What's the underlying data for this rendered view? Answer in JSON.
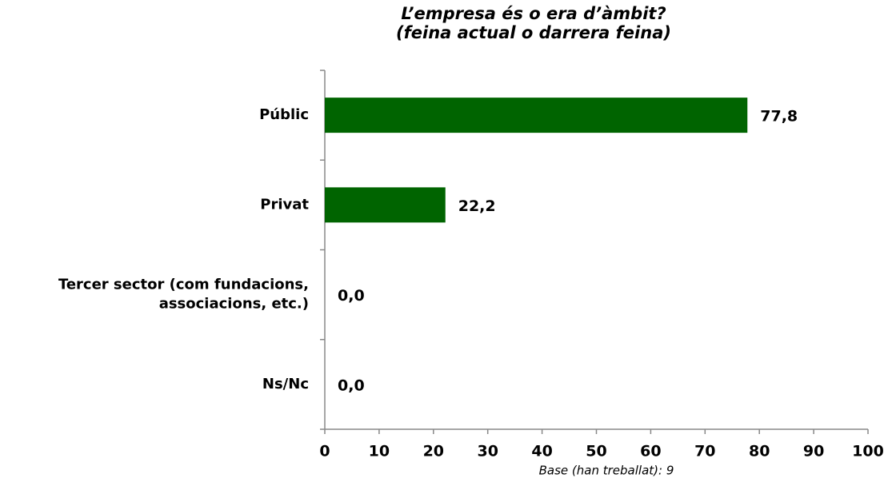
{
  "chart_data": {
    "type": "hbar",
    "title": "L’empresa és o era d’àmbit?\n(feina actual o darrera feina)",
    "categories": [
      "Públic",
      "Privat",
      "Tercer sector (com fundacions,\nassociacions, etc.)",
      "Ns/Nc"
    ],
    "values": [
      77.8,
      22.2,
      0,
      0
    ],
    "value_labels": [
      "77,8",
      "22,2",
      "0,0",
      "0,0"
    ],
    "color": "#006400",
    "xlim": [
      0,
      100
    ],
    "xticks": [
      0,
      10,
      20,
      30,
      40,
      50,
      60,
      70,
      80,
      90,
      100
    ],
    "note": "Base (han treballat): 9"
  }
}
